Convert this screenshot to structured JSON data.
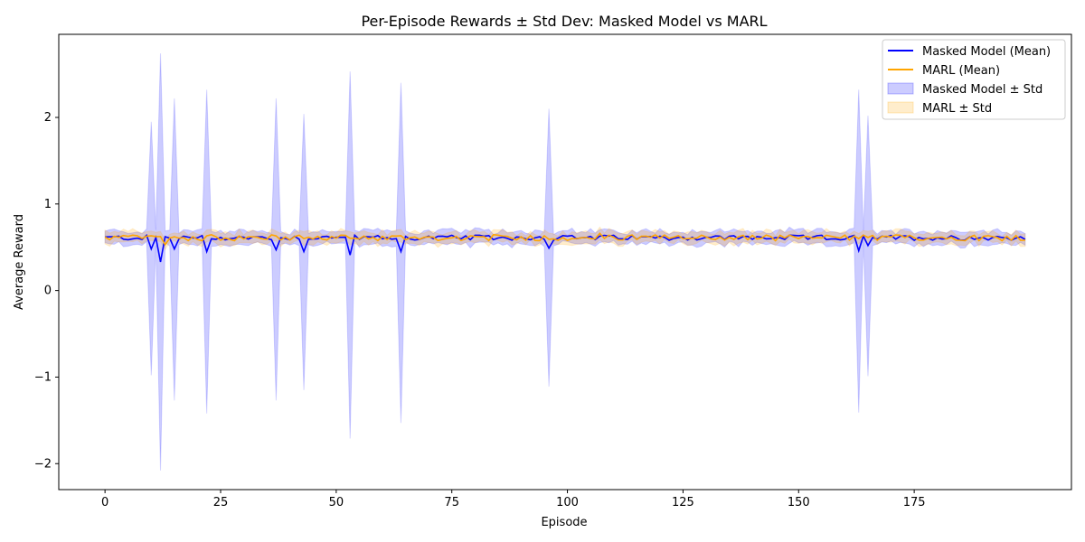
{
  "chart_data": {
    "type": "line",
    "title": "Per-Episode Rewards ± Std Dev: Masked Model vs MARL",
    "xlabel": "Episode",
    "ylabel": "Average Reward",
    "xlim": [
      -10,
      209
    ],
    "ylim": [
      -2.3,
      2.96
    ],
    "xticks": [
      0,
      25,
      50,
      75,
      100,
      125,
      150,
      175
    ],
    "yticks": [
      -2,
      -1,
      0,
      1,
      2
    ],
    "xtick_labels": [
      "0",
      "25",
      "50",
      "75",
      "100",
      "125",
      "150",
      "175"
    ],
    "ytick_labels": [
      "−2",
      "−1",
      "0",
      "1",
      "2"
    ],
    "legend_position": "upper right",
    "legend": [
      "Masked Model (Mean)",
      "MARL (Mean)",
      "Masked Model ± Std",
      "MARL ± Std"
    ],
    "colors": {
      "masked_line": "#0000ff",
      "marl_line": "#ffa500",
      "masked_band": "#0000ff",
      "marl_band": "#ffa500"
    },
    "series": [
      {
        "name": "Masked Model (Mean)",
        "base": 0.61,
        "std_base": 0.055,
        "spikes": [
          {
            "episode": 10,
            "mean": 0.48,
            "upper": 1.95,
            "lower": -0.98
          },
          {
            "episode": 12,
            "mean": 0.33,
            "upper": 2.74,
            "lower": -2.08
          },
          {
            "episode": 15,
            "mean": 0.48,
            "upper": 2.22,
            "lower": -1.27
          },
          {
            "episode": 22,
            "mean": 0.45,
            "upper": 2.32,
            "lower": -1.42
          },
          {
            "episode": 37,
            "mean": 0.47,
            "upper": 2.22,
            "lower": -1.27
          },
          {
            "episode": 43,
            "mean": 0.45,
            "upper": 2.04,
            "lower": -1.15
          },
          {
            "episode": 53,
            "mean": 0.41,
            "upper": 2.53,
            "lower": -1.71
          },
          {
            "episode": 64,
            "mean": 0.45,
            "upper": 2.4,
            "lower": -1.53
          },
          {
            "episode": 96,
            "mean": 0.49,
            "upper": 2.1,
            "lower": -1.11
          },
          {
            "episode": 163,
            "mean": 0.46,
            "upper": 2.32,
            "lower": -1.41
          },
          {
            "episode": 165,
            "mean": 0.52,
            "upper": 2.02,
            "lower": -0.99
          }
        ]
      },
      {
        "name": "MARL (Mean)",
        "base": 0.61,
        "std_base": 0.045
      }
    ],
    "episodes": {
      "start": 0,
      "end": 199
    }
  }
}
